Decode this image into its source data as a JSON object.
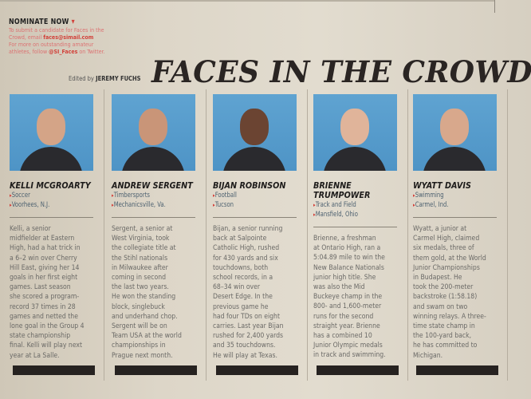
{
  "nominate": {
    "heading": "NOMINATE NOW",
    "arrow": "▾",
    "line1": "To submit a candidate for Faces in the",
    "line2_pre": "Crowd, email ",
    "email": "faces@simail.com",
    "line3": "For more on outstanding amateur",
    "line4_pre": "athletes, follow ",
    "handle": "@SI_Faces",
    "line4_post": " on Twitter."
  },
  "editor": {
    "prefix": "Edited by ",
    "name": "JEREMY FUCHS"
  },
  "title": "FACES IN THE CROWD",
  "colors": {
    "accent": "#d2413a",
    "photo_bg": "#5fa3d1",
    "text": "#6a6966"
  },
  "athletes": [
    {
      "name": [
        "KELLI MCGROARTY"
      ],
      "sport": "Soccer",
      "hometown": "Voorhees, N.J.",
      "body": [
        "Kelli, a senior",
        "midfielder at Eastern",
        "High, had a hat trick in",
        "a 6–2 win over Cherry",
        "Hill East, giving her 14",
        "goals in her first eight",
        "games. Last season",
        "she scored a program-",
        "record 37 times in 28",
        "games and netted the",
        "lone goal in the Group 4",
        "state championship",
        "final. Kelli will play next",
        "year at La Salle."
      ]
    },
    {
      "name": [
        "ANDREW SERGENT"
      ],
      "sport": "Timbersports",
      "hometown": "Mechanicsville, Va.",
      "body": [
        "Sergent, a senior at",
        "West Virginia, took",
        "the collegiate title at",
        "the Stihl nationals",
        "in Milwaukee after",
        "coming in second",
        "the last two years.",
        "He won the standing",
        "block, singlebuck",
        "and underhand chop.",
        "Sergent will be on",
        "Team USA at the world",
        "championships in",
        "Prague next month."
      ]
    },
    {
      "name": [
        "BIJAN ROBINSON"
      ],
      "sport": "Football",
      "hometown": "Tucson",
      "body": [
        "Bijan, a senior running",
        "back at Salpointe",
        "Catholic High, rushed",
        "for 430 yards and six",
        "touchdowns, both",
        "school records, in a",
        "68–34 win over",
        "Desert Edge. In the",
        "previous game he",
        "had four TDs on eight",
        "carries. Last year Bijan",
        "rushed for 2,400 yards",
        "and 35 touchdowns.",
        "He will play at Texas."
      ]
    },
    {
      "name": [
        "BRIENNE",
        "TRUMPOWER"
      ],
      "sport": "Track and Field",
      "hometown": "Mansfield, Ohio",
      "body": [
        "Brienne, a freshman",
        "at Ontario High, ran a",
        "5:04.89 mile to win the",
        "New Balance Nationals",
        "junior high title. She",
        "was also the Mid",
        "Buckeye champ in the",
        "800- and 1,600-meter",
        "runs for the second",
        "straight year. Brienne",
        "has a combined 10",
        "Junior Olympic medals",
        "in track and swimming."
      ]
    },
    {
      "name": [
        "WYATT DAVIS"
      ],
      "sport": "Swimming",
      "hometown": "Carmel, Ind.",
      "body": [
        "Wyatt, a junior at",
        "Carmel High, claimed",
        "six medals, three of",
        "them gold, at the World",
        "Junior Championships",
        "in Budapest. He",
        "took the 200-meter",
        "backstroke (1:58.18)",
        "and swam on two",
        "winning relays. A three-",
        "time state champ in",
        "the 100-yard back,",
        "he has committed to",
        "Michigan."
      ]
    }
  ]
}
